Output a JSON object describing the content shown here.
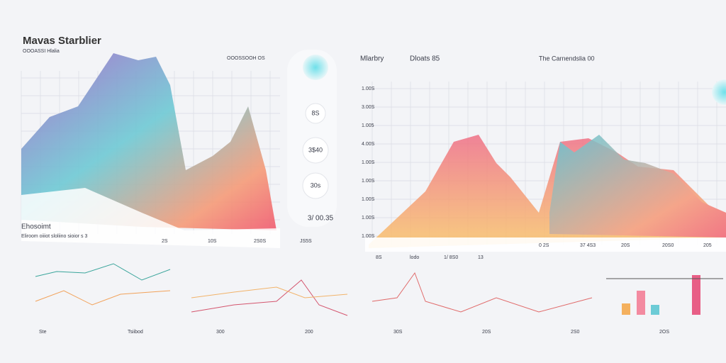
{
  "header": {
    "title": "Mavas Starblier",
    "subtitle": "OOOASSI Hlalia",
    "tag": "OOOSSOOH OS"
  },
  "left_panel": {
    "caption": "Ehosoimt",
    "caption_note": "Eliroom oiiiot sloliino sioior s 3",
    "footer": [
      "2S",
      "10S",
      "2S0S",
      "JS5S"
    ]
  },
  "dials": [
    "8S",
    "3$40",
    "30s"
  ],
  "dial_total": "3/ 00.35",
  "right_panel": {
    "title": "Mlarbry",
    "title2": "Dloats 85",
    "title3": "The Carnendslia 00",
    "y_labels": [
      "1.00S",
      "3.00S",
      "1.005",
      "4.00S",
      "1.00S",
      "1.00S",
      "1.00S",
      "1.00S",
      "1.00S"
    ],
    "x_labels": [
      "0 2S",
      "37 4S3",
      "20S",
      "20S0",
      "205"
    ],
    "footer": [
      "8S",
      "lodo",
      "1/ 8S0",
      "13"
    ]
  },
  "bottom": {
    "labels": [
      "Ste",
      "Tsiibod",
      "300",
      "200",
      "30S",
      "20S",
      "2S0",
      "2OS"
    ]
  }
}
